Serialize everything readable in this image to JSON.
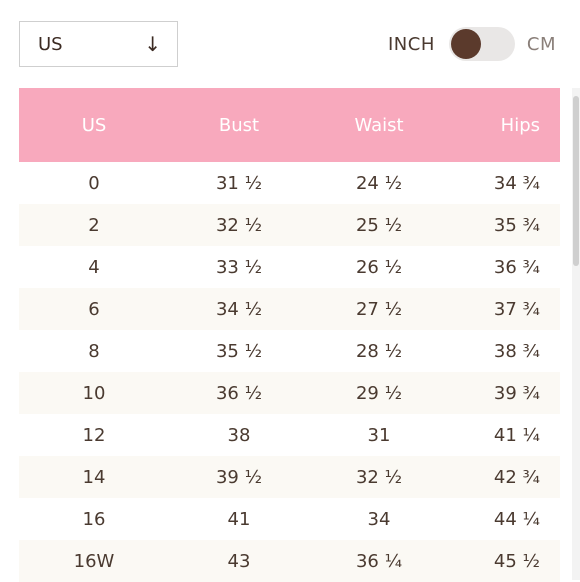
{
  "region_select": {
    "value": "US",
    "arrow_icon": "arrow-down-icon"
  },
  "unit_toggle": {
    "left_label": "INCH",
    "right_label": "CM",
    "selected": "INCH"
  },
  "table": {
    "headers": [
      "US",
      "Bust",
      "Waist",
      "Hips"
    ],
    "rows": [
      [
        "0",
        "31 ½",
        "24 ½",
        "34 ¾"
      ],
      [
        "2",
        "32 ½",
        "25 ½",
        "35 ¾"
      ],
      [
        "4",
        "33 ½",
        "26 ½",
        "36 ¾"
      ],
      [
        "6",
        "34 ½",
        "27 ½",
        "37 ¾"
      ],
      [
        "8",
        "35 ½",
        "28 ½",
        "38 ¾"
      ],
      [
        "10",
        "36 ½",
        "29 ½",
        "39 ¾"
      ],
      [
        "12",
        "38",
        "31",
        "41 ¼"
      ],
      [
        "14",
        "39 ½",
        "32 ½",
        "42 ¾"
      ],
      [
        "16",
        "41",
        "34",
        "44 ¼"
      ],
      [
        "16W",
        "43",
        "36 ¼",
        "45 ½"
      ]
    ]
  },
  "colors": {
    "header_bg": "#f8a9bd",
    "header_text": "#ffffff",
    "row_alt_bg": "#fbf9f4",
    "text": "#4a3a30",
    "toggle_knob": "#5b3a2c"
  }
}
